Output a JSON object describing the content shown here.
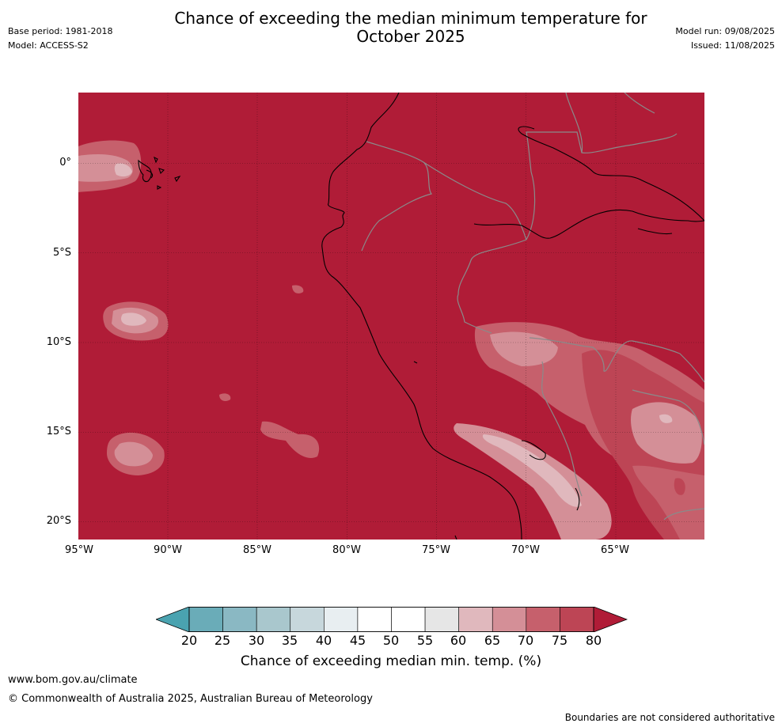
{
  "title": {
    "line1": "Chance of exceeding the median minimum temperature for",
    "line2": "October 2025"
  },
  "meta_left": {
    "base_period": "Base period: 1981-2018",
    "model": "Model: ACCESS-S2"
  },
  "meta_right": {
    "model_run": "Model run: 09/08/2025",
    "issued": "Issued: 11/08/2025"
  },
  "map": {
    "background_color": "#b01c37",
    "lat_labels": [
      "0°",
      "5°S",
      "10°S",
      "15°S",
      "20°S"
    ],
    "lon_labels": [
      "95°W",
      "90°W",
      "85°W",
      "80°W",
      "75°W",
      "70°W",
      "65°W"
    ]
  },
  "colorbar": {
    "ticks": [
      "20",
      "25",
      "30",
      "35",
      "40",
      "45",
      "50",
      "55",
      "60",
      "65",
      "70",
      "75",
      "80"
    ],
    "colors": [
      "#6aacb8",
      "#8ab8c3",
      "#a9c7cd",
      "#c7d7dc",
      "#e8eef1",
      "#ffffff",
      "#ffffff",
      "#e6e6e6",
      "#e0b8bd",
      "#d48f97",
      "#c6606c",
      "#bd4555"
    ],
    "under_color": "#4aa3b0",
    "over_color": "#b01c37",
    "label": "Chance of exceeding median min. temp. (%)"
  },
  "footer": {
    "url": "www.bom.gov.au/climate",
    "copyright": "© Commonwealth of Australia 2025, Australian Bureau of Meteorology",
    "disclaimer": "Boundaries are not considered authoritative"
  }
}
